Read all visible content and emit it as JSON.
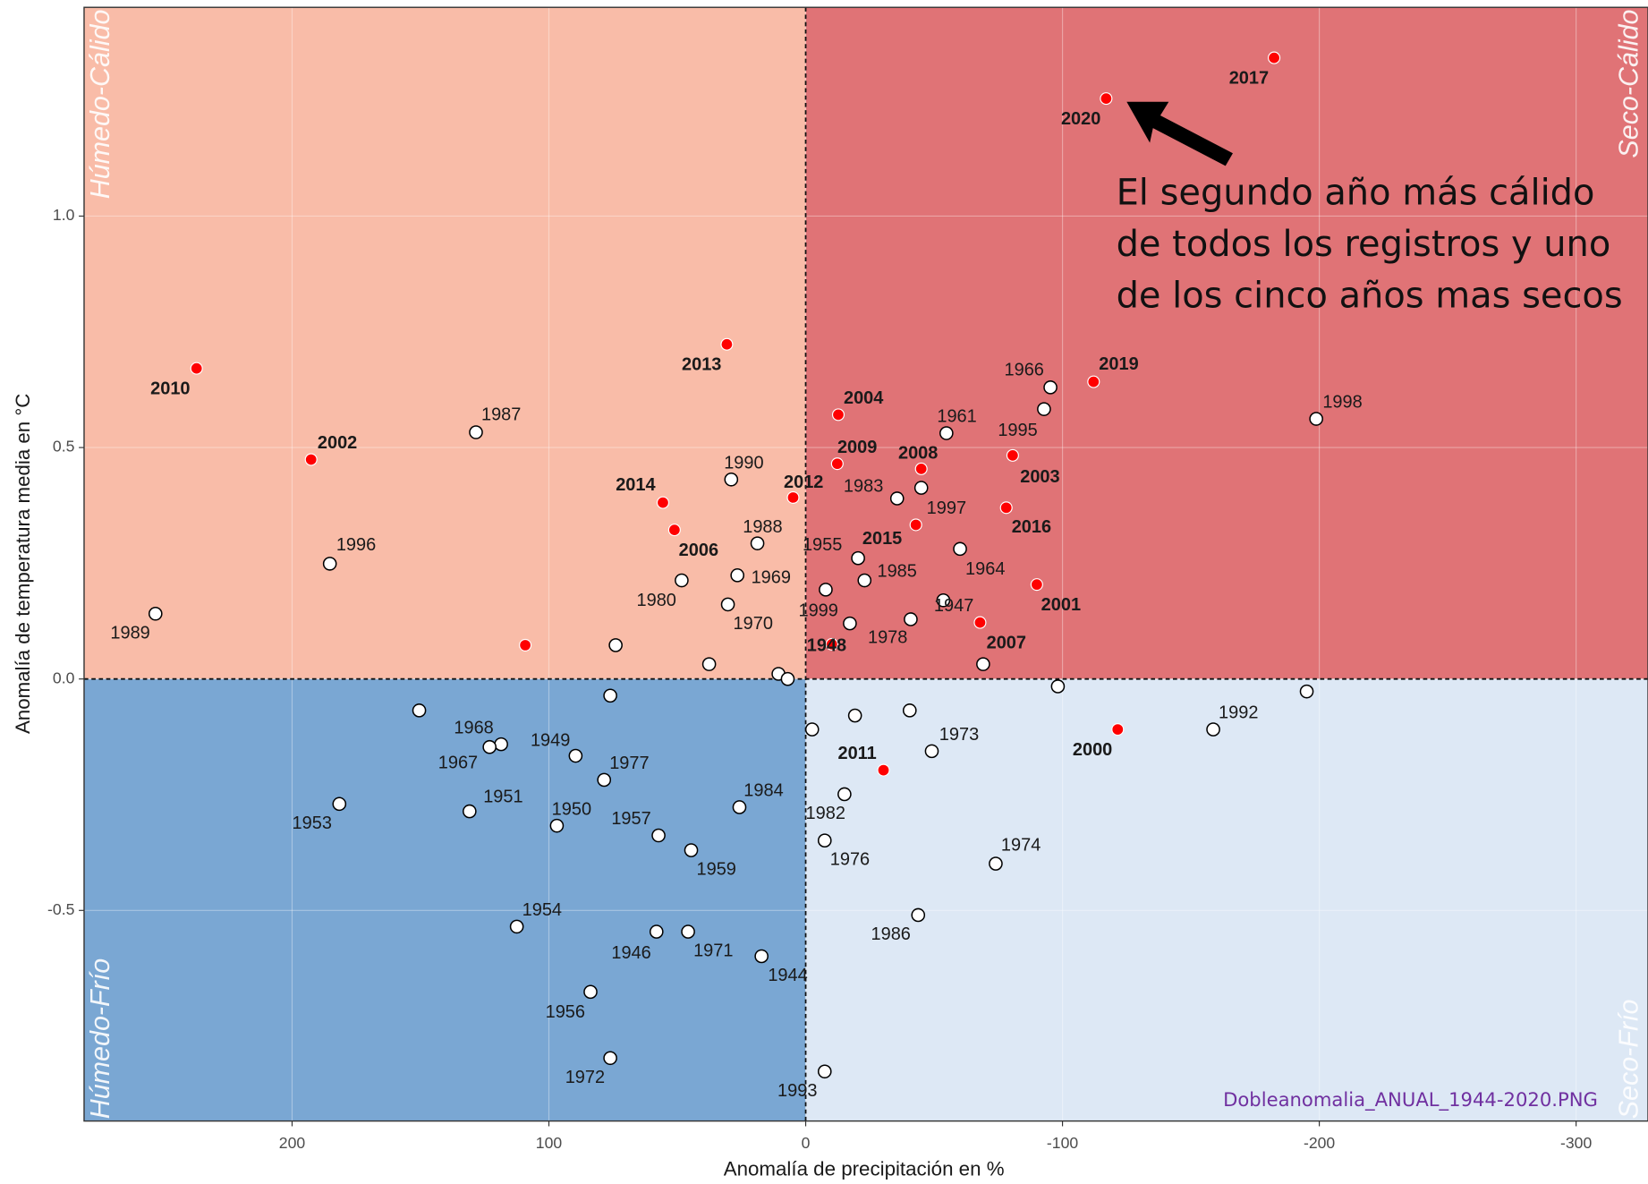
{
  "chart_data": {
    "type": "scatter",
    "x_label": "Anomalía de precipitación en %",
    "y_label": "Anomalía de temperatura media en °C",
    "xlim": [
      281,
      -328
    ],
    "ylim": [
      -0.955,
      1.451
    ],
    "xticks": [
      200,
      100,
      0,
      -100,
      -200,
      -300
    ],
    "yticks": [
      -0.5,
      {
        "value": 0,
        "label": "0.0"
      },
      0.5,
      {
        "value": 1,
        "label": "1.0"
      }
    ],
    "grid": true,
    "quadrants": [
      {
        "label": "Húmedo-Cálido",
        "color": "#f9bca8"
      },
      {
        "label": "Seco-Cálido",
        "color": "#e07376"
      },
      {
        "label": "Húmedo-Frío",
        "color": "#7aa7d3"
      },
      {
        "label": "Seco-Frío",
        "color": "#dde8f5"
      }
    ],
    "annotation": [
      "El segundo año más cálido",
      "de todos los registros y uno",
      "de los cinco años mas secos"
    ],
    "footer": "Dobleanomalia_ANUAL_1944-2020.PNG",
    "points": [
      {
        "x": 237.2,
        "y": 0.671,
        "label": "2010",
        "color": "#ff0000"
      },
      {
        "x": 30.7,
        "y": 0.723,
        "label": "2013",
        "color": "#ff0000"
      },
      {
        "x": 192.6,
        "y": 0.474,
        "label": "2002",
        "color": "#ff0000"
      },
      {
        "x": 55.6,
        "y": 0.381,
        "label": "2014",
        "color": "#ff0000"
      },
      {
        "x": 51.1,
        "y": 0.322,
        "label": "2006",
        "color": "#ff0000"
      },
      {
        "x": 4.9,
        "y": 0.392,
        "label": "2012",
        "color": "#ff0000"
      },
      {
        "x": -12.7,
        "y": 0.571,
        "label": "2004",
        "color": "#ff0000"
      },
      {
        "x": -12.3,
        "y": 0.465,
        "label": "2009",
        "color": "#ff0000"
      },
      {
        "x": -45,
        "y": 0.454,
        "label": "2008",
        "color": "#ff0000"
      },
      {
        "x": -112.1,
        "y": 0.642,
        "label": "2019",
        "color": "#ff0000"
      },
      {
        "x": -80.6,
        "y": 0.483,
        "label": "2003",
        "color": "#ff0000"
      },
      {
        "x": -78.1,
        "y": 0.37,
        "label": "2016",
        "color": "#ff0000"
      },
      {
        "x": -42.9,
        "y": 0.333,
        "label": "2015",
        "color": "#ff0000"
      },
      {
        "x": -90,
        "y": 0.204,
        "label": "2001",
        "color": "#ff0000"
      },
      {
        "x": -67.9,
        "y": 0.122,
        "label": "2007",
        "color": "#ff0000"
      },
      {
        "x": -10.2,
        "y": 0.075,
        "label": "1948",
        "color": "#ff0000"
      },
      {
        "x": 109.2,
        "y": 0.073,
        "label": null,
        "color": "#ff0000"
      },
      {
        "x": -30.3,
        "y": -0.197,
        "label": "2011",
        "color": "#ff0000"
      },
      {
        "x": -121.5,
        "y": -0.109,
        "label": "2000",
        "color": "#ff0000"
      },
      {
        "x": -117,
        "y": 1.254,
        "label": "2020",
        "color": "#ff0000"
      },
      {
        "x": -182.4,
        "y": 1.342,
        "label": "2017",
        "color": "#ff0000"
      },
      {
        "x": 253.2,
        "y": 0.141,
        "label": "1989",
        "color": "#ffffff"
      },
      {
        "x": 185.3,
        "y": 0.249,
        "label": "1996",
        "color": "#ffffff"
      },
      {
        "x": 128.4,
        "y": 0.533,
        "label": "1987",
        "color": "#ffffff"
      },
      {
        "x": 29,
        "y": 0.431,
        "label": "1990",
        "color": "#ffffff"
      },
      {
        "x": 18.8,
        "y": 0.293,
        "label": "1988",
        "color": "#ffffff"
      },
      {
        "x": 26.6,
        "y": 0.224,
        "label": "1969",
        "color": "#ffffff"
      },
      {
        "x": 48.3,
        "y": 0.213,
        "label": "1980",
        "color": "#ffffff"
      },
      {
        "x": 30.3,
        "y": 0.161,
        "label": "1970",
        "color": "#ffffff"
      },
      {
        "x": 74,
        "y": 0.073,
        "label": null,
        "color": "#ffffff"
      },
      {
        "x": 37.6,
        "y": 0.032,
        "label": null,
        "color": "#ffffff"
      },
      {
        "x": 10.6,
        "y": 0.011,
        "label": null,
        "color": "#ffffff"
      },
      {
        "x": 7,
        "y": 0,
        "label": null,
        "color": "#ffffff"
      },
      {
        "x": -20.4,
        "y": 0.261,
        "label": "1955",
        "color": "#ffffff"
      },
      {
        "x": -7.8,
        "y": 0.193,
        "label": "1999",
        "color": "#ffffff"
      },
      {
        "x": -22.9,
        "y": 0.213,
        "label": "1985",
        "color": "#ffffff"
      },
      {
        "x": -17.2,
        "y": 0.12,
        "label": "1978",
        "color": "#ffffff"
      },
      {
        "x": -35.6,
        "y": 0.39,
        "label": "1983",
        "color": "#ffffff"
      },
      {
        "x": -54.8,
        "y": 0.531,
        "label": "1961",
        "color": "#ffffff"
      },
      {
        "x": -45,
        "y": 0.413,
        "label": "1997",
        "color": "#ffffff"
      },
      {
        "x": -95.3,
        "y": 0.63,
        "label": "1966",
        "color": "#ffffff"
      },
      {
        "x": -92.8,
        "y": 0.583,
        "label": "1995",
        "color": "#ffffff"
      },
      {
        "x": -60.1,
        "y": 0.281,
        "label": "1964",
        "color": "#ffffff"
      },
      {
        "x": -53.6,
        "y": 0.17,
        "label": "1947",
        "color": "#ffffff"
      },
      {
        "x": -40.9,
        "y": 0.129,
        "label": null,
        "color": "#ffffff"
      },
      {
        "x": -69.1,
        "y": 0.032,
        "label": null,
        "color": "#ffffff"
      },
      {
        "x": -198.8,
        "y": 0.562,
        "label": "1998",
        "color": "#ffffff"
      },
      {
        "x": -98.2,
        "y": -0.016,
        "label": null,
        "color": "#ffffff"
      },
      {
        "x": -195.1,
        "y": -0.027,
        "label": null,
        "color": "#ffffff"
      },
      {
        "x": -158.7,
        "y": -0.109,
        "label": "1992",
        "color": "#ffffff"
      },
      {
        "x": -49.1,
        "y": -0.156,
        "label": "1973",
        "color": "#ffffff"
      },
      {
        "x": -40.5,
        "y": -0.068,
        "label": null,
        "color": "#ffffff"
      },
      {
        "x": -19.2,
        "y": -0.079,
        "label": null,
        "color": "#ffffff"
      },
      {
        "x": -2.5,
        "y": -0.109,
        "label": null,
        "color": "#ffffff"
      },
      {
        "x": -15.1,
        "y": -0.249,
        "label": "1982",
        "color": "#ffffff"
      },
      {
        "x": -7.4,
        "y": -0.349,
        "label": "1976",
        "color": "#ffffff"
      },
      {
        "x": -74,
        "y": -0.399,
        "label": "1974",
        "color": "#ffffff"
      },
      {
        "x": -43.8,
        "y": -0.51,
        "label": "1986",
        "color": "#ffffff"
      },
      {
        "x": -7.4,
        "y": -0.848,
        "label": "1993",
        "color": "#ffffff"
      },
      {
        "x": 150.5,
        "y": -0.068,
        "label": null,
        "color": "#ffffff"
      },
      {
        "x": 76.1,
        "y": -0.036,
        "label": null,
        "color": "#ffffff"
      },
      {
        "x": 118.6,
        "y": -0.141,
        "label": "1968",
        "color": "#ffffff"
      },
      {
        "x": 123.1,
        "y": -0.147,
        "label": "1967",
        "color": "#ffffff"
      },
      {
        "x": 89.6,
        "y": -0.166,
        "label": "1949",
        "color": "#ffffff"
      },
      {
        "x": 78.5,
        "y": -0.218,
        "label": "1977",
        "color": "#ffffff"
      },
      {
        "x": 25.8,
        "y": -0.277,
        "label": "1984",
        "color": "#ffffff"
      },
      {
        "x": 130.9,
        "y": -0.286,
        "label": "1951",
        "color": "#ffffff"
      },
      {
        "x": 181.6,
        "y": -0.27,
        "label": "1953",
        "color": "#ffffff"
      },
      {
        "x": 96.9,
        "y": -0.317,
        "label": "1950",
        "color": "#ffffff"
      },
      {
        "x": 57.3,
        "y": -0.338,
        "label": "1957",
        "color": "#ffffff"
      },
      {
        "x": 44.6,
        "y": -0.37,
        "label": "1959",
        "color": "#ffffff"
      },
      {
        "x": 112.5,
        "y": -0.535,
        "label": "1954",
        "color": "#ffffff"
      },
      {
        "x": 58.1,
        "y": -0.546,
        "label": "1946",
        "color": "#ffffff"
      },
      {
        "x": 45.8,
        "y": -0.546,
        "label": "1971",
        "color": "#ffffff"
      },
      {
        "x": 17.2,
        "y": -0.599,
        "label": "1944",
        "color": "#ffffff"
      },
      {
        "x": 83.8,
        "y": -0.676,
        "label": "1956",
        "color": "#ffffff"
      },
      {
        "x": 76.1,
        "y": -0.819,
        "label": "1972",
        "color": "#ffffff"
      }
    ]
  }
}
